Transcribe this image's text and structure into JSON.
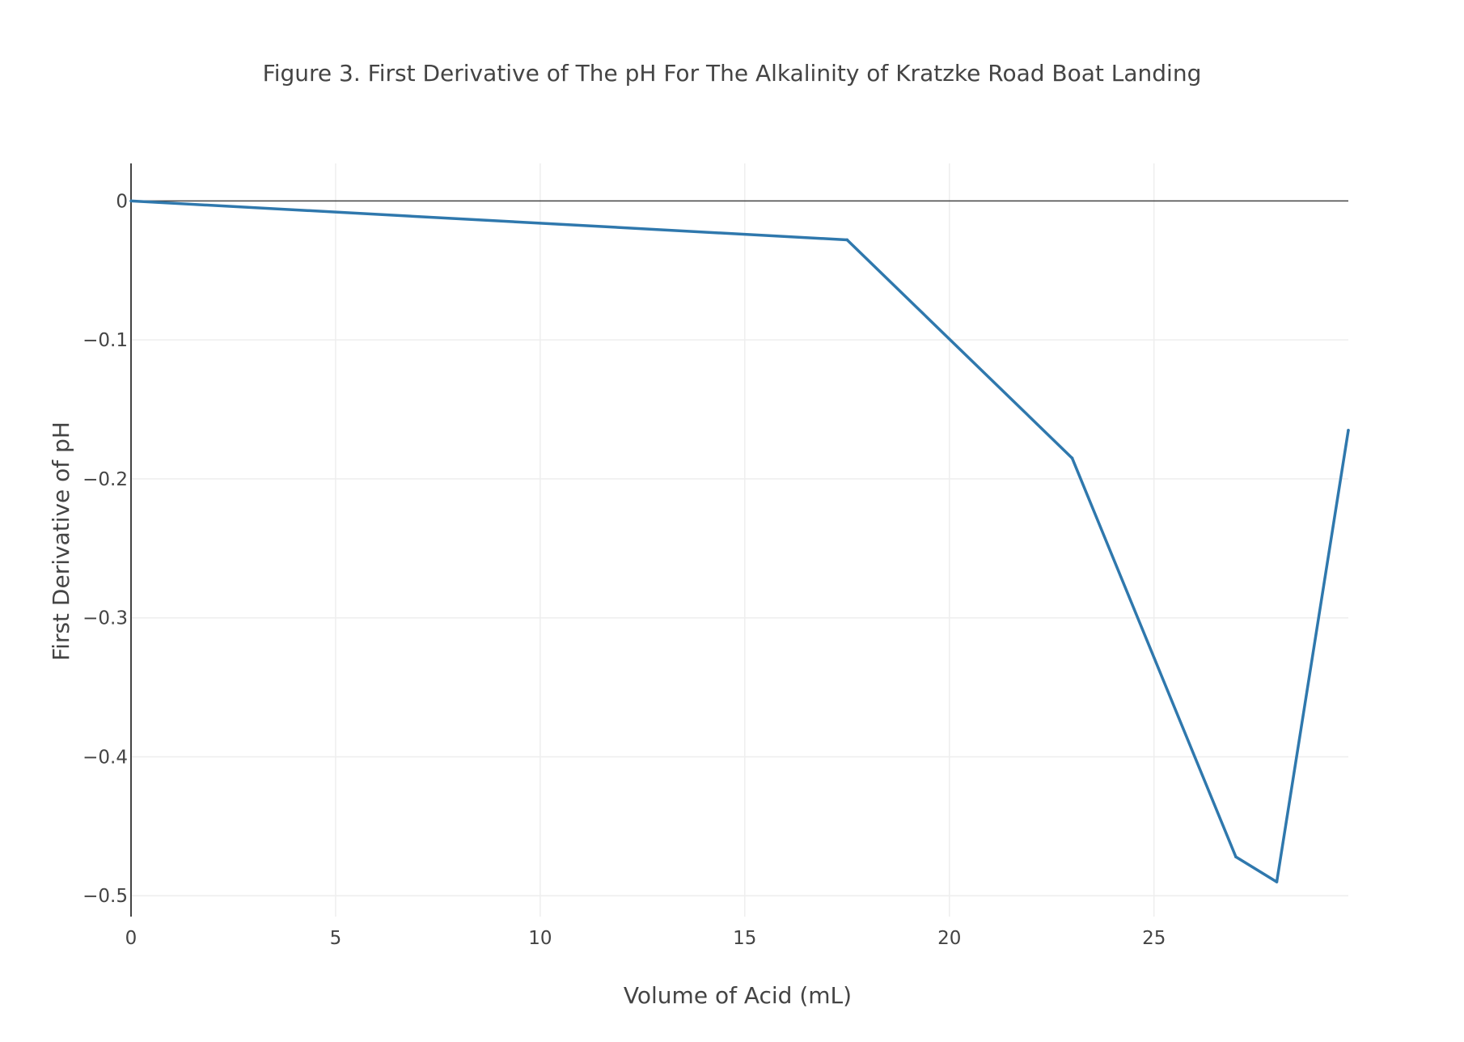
{
  "chart_data": {
    "type": "line",
    "title": "Figure 3. First Derivative of The pH For The Alkalinity of Kratzke Road Boat Landing",
    "xlabel": "Volume of Acid (mL)",
    "ylabel": "First Derivative of pH",
    "xlim": [
      0,
      29.75
    ],
    "ylim": [
      -0.515,
      0.027
    ],
    "x_ticks": [
      0,
      5,
      10,
      15,
      20,
      25
    ],
    "x_tick_labels": [
      "0",
      "5",
      "10",
      "15",
      "20",
      "25"
    ],
    "y_ticks": [
      0,
      -0.1,
      -0.2,
      -0.3,
      -0.4,
      -0.5
    ],
    "y_tick_labels": [
      "0",
      "−0.1",
      "−0.2",
      "−0.3",
      "−0.4",
      "−0.5"
    ],
    "grid": true,
    "series": [
      {
        "x": [
          0,
          17.5,
          23,
          27,
          28,
          29.75
        ],
        "y": [
          0,
          -0.028,
          -0.185,
          -0.472,
          -0.49,
          -0.165
        ],
        "color": "#2f78ad"
      }
    ],
    "colors": {
      "grid": "#eeeeee",
      "zero_line": "#444444",
      "axis_line": "#444444"
    }
  }
}
